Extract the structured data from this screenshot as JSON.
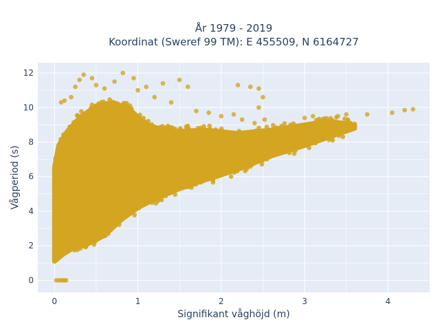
{
  "chart_data": {
    "type": "scatter",
    "title_lines": [
      "År 1979 - 2019",
      "Koordinat (Sweref 99 TM): E 455509, N 6164727"
    ],
    "xlabel": "Signifikant våghöjd (m)",
    "ylabel": "Vågperiod (s)",
    "xlim": [
      -0.2,
      4.5
    ],
    "ylim": [
      -0.7,
      12.6
    ],
    "xticks": [
      0,
      1,
      2,
      3,
      4
    ],
    "yticks": [
      0,
      2,
      4,
      6,
      8,
      10,
      12
    ],
    "grid": true,
    "marker_color": "#D4A520",
    "plot_background": "#E5ECF6",
    "dense_region": {
      "lower_envelope": [
        [
          0.0,
          1.1
        ],
        [
          0.1,
          1.5
        ],
        [
          0.2,
          1.8
        ],
        [
          0.4,
          2.1
        ],
        [
          0.6,
          2.6
        ],
        [
          0.8,
          3.5
        ],
        [
          1.0,
          4.2
        ],
        [
          1.2,
          4.7
        ],
        [
          1.5,
          5.3
        ],
        [
          1.8,
          5.8
        ],
        [
          2.0,
          6.1
        ],
        [
          2.3,
          6.6
        ],
        [
          2.6,
          7.2
        ],
        [
          3.0,
          7.8
        ],
        [
          3.3,
          8.3
        ],
        [
          3.6,
          8.8
        ]
      ],
      "upper_envelope": [
        [
          0.0,
          6.5
        ],
        [
          0.05,
          7.8
        ],
        [
          0.15,
          8.6
        ],
        [
          0.3,
          9.4
        ],
        [
          0.5,
          10.1
        ],
        [
          0.7,
          10.3
        ],
        [
          0.9,
          9.9
        ],
        [
          1.1,
          9.0
        ],
        [
          1.4,
          8.6
        ],
        [
          1.8,
          8.7
        ],
        [
          2.2,
          8.5
        ],
        [
          2.6,
          8.7
        ],
        [
          3.0,
          9.0
        ],
        [
          3.3,
          9.2
        ],
        [
          3.6,
          9.0
        ]
      ]
    },
    "sparse_points": [
      {
        "x": 0.3,
        "y": 11.6
      },
      {
        "x": 0.35,
        "y": 11.9
      },
      {
        "x": 0.45,
        "y": 11.7
      },
      {
        "x": 0.25,
        "y": 11.2
      },
      {
        "x": 0.5,
        "y": 11.3
      },
      {
        "x": 0.6,
        "y": 11.1
      },
      {
        "x": 0.82,
        "y": 12.0
      },
      {
        "x": 0.72,
        "y": 11.5
      },
      {
        "x": 0.95,
        "y": 11.7
      },
      {
        "x": 1.1,
        "y": 11.2
      },
      {
        "x": 1.3,
        "y": 11.4
      },
      {
        "x": 1.5,
        "y": 11.6
      },
      {
        "x": 1.6,
        "y": 11.2
      },
      {
        "x": 1.0,
        "y": 11.0
      },
      {
        "x": 0.2,
        "y": 10.6
      },
      {
        "x": 0.12,
        "y": 10.4
      },
      {
        "x": 0.08,
        "y": 10.3
      },
      {
        "x": 1.2,
        "y": 10.6
      },
      {
        "x": 1.4,
        "y": 10.3
      },
      {
        "x": 1.7,
        "y": 9.8
      },
      {
        "x": 1.85,
        "y": 9.7
      },
      {
        "x": 2.0,
        "y": 9.5
      },
      {
        "x": 2.15,
        "y": 9.6
      },
      {
        "x": 2.25,
        "y": 9.3
      },
      {
        "x": 2.4,
        "y": 9.1
      },
      {
        "x": 2.52,
        "y": 9.3
      },
      {
        "x": 2.35,
        "y": 11.2
      },
      {
        "x": 2.45,
        "y": 11.1
      },
      {
        "x": 2.5,
        "y": 10.6
      },
      {
        "x": 2.45,
        "y": 10.0
      },
      {
        "x": 2.2,
        "y": 11.3
      },
      {
        "x": 3.0,
        "y": 9.4
      },
      {
        "x": 3.1,
        "y": 9.5
      },
      {
        "x": 3.4,
        "y": 9.5
      },
      {
        "x": 3.5,
        "y": 9.6
      },
      {
        "x": 3.55,
        "y": 9.1
      },
      {
        "x": 3.6,
        "y": 9.05
      },
      {
        "x": 3.75,
        "y": 9.6
      },
      {
        "x": 4.05,
        "y": 9.7
      },
      {
        "x": 4.2,
        "y": 9.85
      },
      {
        "x": 4.3,
        "y": 9.9
      },
      {
        "x": 0.1,
        "y": 0.0
      },
      {
        "x": 0.02,
        "y": 0.0
      },
      {
        "x": 0.05,
        "y": 0.0
      },
      {
        "x": 0.08,
        "y": 0.0
      },
      {
        "x": 0.12,
        "y": 0.0
      },
      {
        "x": 0.14,
        "y": 0.0
      }
    ]
  }
}
